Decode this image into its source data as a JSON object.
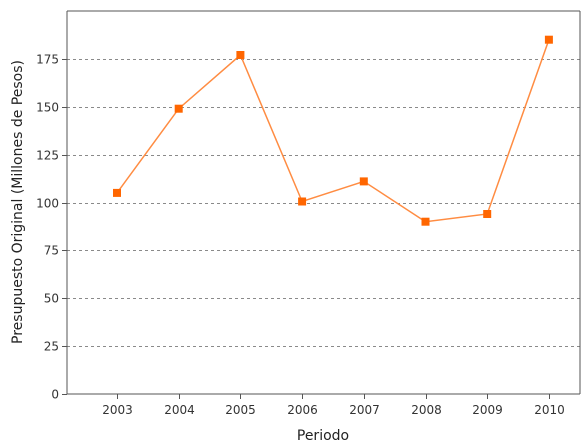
{
  "chart_data": {
    "type": "line",
    "title": "",
    "xlabel": "Periodo",
    "ylabel": "Presupuesto Original (Millones de Pesos)",
    "categories": [
      "2003",
      "2004",
      "2005",
      "2006",
      "2007",
      "2008",
      "2009",
      "2010"
    ],
    "series": [
      {
        "values": [
          105,
          149,
          177,
          100.5,
          111,
          90,
          94,
          185
        ],
        "color": "#ff6600",
        "line_color": "#ff8c42",
        "marker": "square"
      }
    ],
    "ylim": [
      0,
      200
    ],
    "yticks": [
      "0",
      "25",
      "50",
      "75",
      "100",
      "125",
      "150",
      "175"
    ],
    "grid": true,
    "grid_style": "dashed horizontal",
    "legend": "none"
  }
}
